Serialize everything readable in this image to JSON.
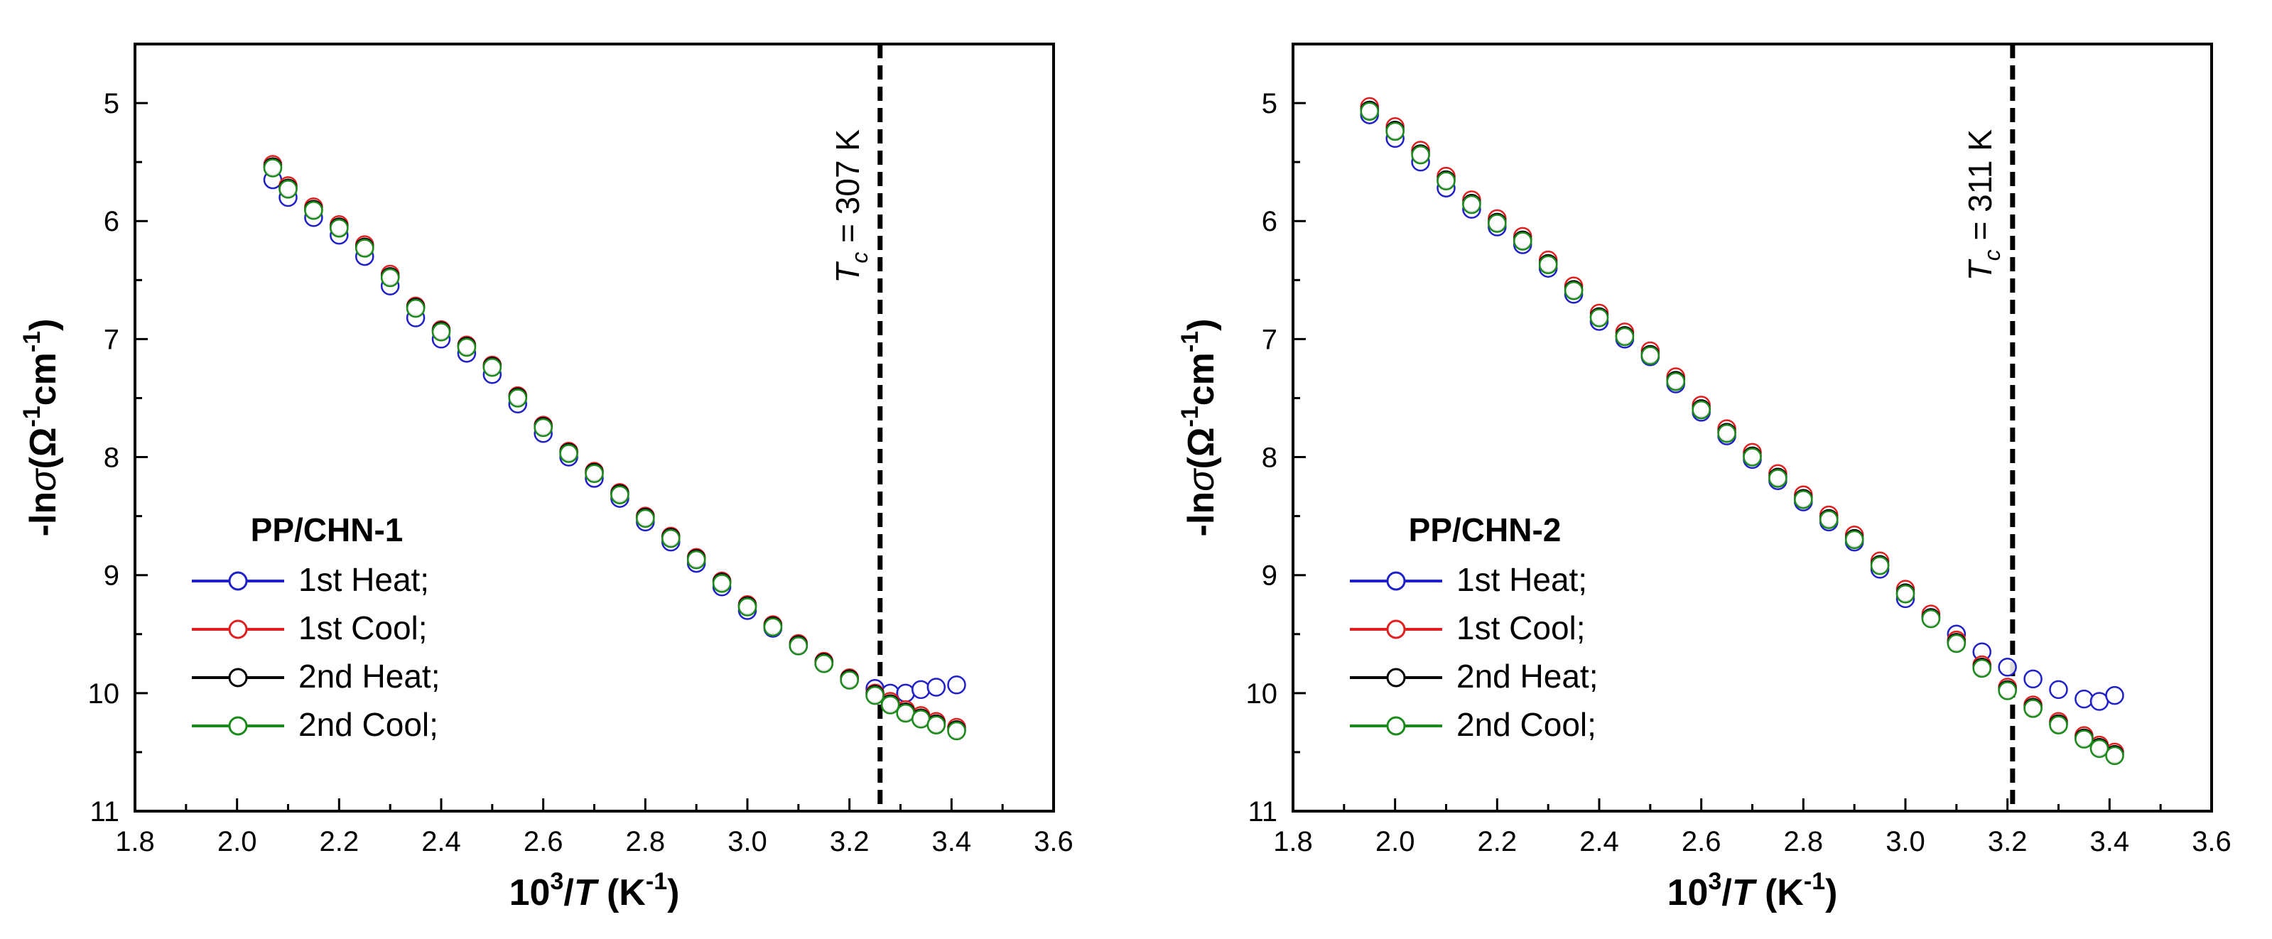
{
  "chart_data": [
    {
      "type": "scatter",
      "xlabel": "10³/T (K⁻¹)",
      "xlabel_parts": {
        "prefix": "10",
        "sup": "3",
        "slash": "/",
        "italic": "T",
        "unit_open": " (K",
        "unit_sup": "-1",
        "unit_close": ")"
      },
      "ylabel": "-lnσ(Ω⁻¹cm⁻¹)",
      "ylabel_parts": {
        "prefix": "-ln",
        "italic": "σ",
        "open": "(Ω",
        "sup1": "-1",
        "mid": "cm",
        "sup2": "-1",
        "close": ")"
      },
      "xlim": [
        1.8,
        3.6
      ],
      "ylim": [
        11,
        4.5
      ],
      "y_inverted": true,
      "x_ticks": [
        "1.8",
        "2.0",
        "2.2",
        "2.4",
        "2.6",
        "2.8",
        "3.0",
        "3.2",
        "3.4",
        "3.6"
      ],
      "y_ticks": [
        "5",
        "6",
        "7",
        "8",
        "9",
        "10",
        "11"
      ],
      "legend_title": "PP/CHN-1",
      "legend_position": "bottom-left",
      "vline": {
        "x": 3.26,
        "label_italic": "T",
        "label_sub": "c",
        "label_rest": " = 307 K"
      },
      "series": [
        {
          "name": "1st Heat;",
          "color": "#2020c8",
          "x": [
            2.07,
            2.1,
            2.15,
            2.2,
            2.25,
            2.3,
            2.35,
            2.4,
            2.45,
            2.5,
            2.55,
            2.6,
            2.65,
            2.7,
            2.75,
            2.8,
            2.85,
            2.9,
            2.95,
            3.0,
            3.05,
            3.1,
            3.15,
            3.2,
            3.25,
            3.28,
            3.31,
            3.34,
            3.37,
            3.41
          ],
          "y": [
            5.65,
            5.8,
            5.97,
            6.12,
            6.3,
            6.55,
            6.82,
            7.0,
            7.12,
            7.3,
            7.55,
            7.8,
            8.0,
            8.18,
            8.35,
            8.55,
            8.72,
            8.9,
            9.1,
            9.3,
            9.45,
            9.6,
            9.75,
            9.88,
            9.96,
            10.0,
            10.0,
            9.97,
            9.95,
            9.93
          ]
        },
        {
          "name": "1st Cool;",
          "color": "#e02020",
          "x": [
            2.07,
            2.1,
            2.15,
            2.2,
            2.25,
            2.3,
            2.35,
            2.4,
            2.45,
            2.5,
            2.55,
            2.6,
            2.65,
            2.7,
            2.75,
            2.8,
            2.85,
            2.9,
            2.95,
            3.0,
            3.05,
            3.1,
            3.15,
            3.2,
            3.25,
            3.28,
            3.31,
            3.34,
            3.37,
            3.41
          ],
          "y": [
            5.52,
            5.7,
            5.88,
            6.03,
            6.2,
            6.45,
            6.72,
            6.92,
            7.05,
            7.22,
            7.48,
            7.73,
            7.95,
            8.12,
            8.3,
            8.5,
            8.67,
            8.85,
            9.05,
            9.25,
            9.42,
            9.58,
            9.73,
            9.87,
            10.0,
            10.07,
            10.14,
            10.19,
            10.24,
            10.29
          ]
        },
        {
          "name": "2nd Heat;",
          "color": "#000000",
          "x": [
            2.07,
            2.1,
            2.15,
            2.2,
            2.25,
            2.3,
            2.35,
            2.4,
            2.45,
            2.5,
            2.55,
            2.6,
            2.65,
            2.7,
            2.75,
            2.8,
            2.85,
            2.9,
            2.95,
            3.0,
            3.05,
            3.1,
            3.15,
            3.2,
            3.25,
            3.28,
            3.31,
            3.34,
            3.37,
            3.41
          ],
          "y": [
            5.54,
            5.72,
            5.9,
            6.05,
            6.22,
            6.47,
            6.73,
            6.93,
            7.06,
            7.23,
            7.49,
            7.74,
            7.96,
            8.13,
            8.31,
            8.51,
            8.68,
            8.86,
            9.06,
            9.26,
            9.43,
            9.59,
            9.74,
            9.88,
            10.01,
            10.09,
            10.16,
            10.21,
            10.26,
            10.31
          ]
        },
        {
          "name": "2nd Cool;",
          "color": "#1a8a1a",
          "x": [
            2.07,
            2.1,
            2.15,
            2.2,
            2.25,
            2.3,
            2.35,
            2.4,
            2.45,
            2.5,
            2.55,
            2.6,
            2.65,
            2.7,
            2.75,
            2.8,
            2.85,
            2.9,
            2.95,
            3.0,
            3.05,
            3.1,
            3.15,
            3.2,
            3.25,
            3.28,
            3.31,
            3.34,
            3.37,
            3.41
          ],
          "y": [
            5.55,
            5.73,
            5.91,
            6.06,
            6.23,
            6.48,
            6.74,
            6.94,
            7.07,
            7.24,
            7.5,
            7.75,
            7.97,
            8.14,
            8.32,
            8.52,
            8.69,
            8.87,
            9.07,
            9.27,
            9.44,
            9.6,
            9.75,
            9.89,
            10.02,
            10.1,
            10.17,
            10.22,
            10.27,
            10.32
          ]
        }
      ]
    },
    {
      "type": "scatter",
      "xlabel": "10³/T (K⁻¹)",
      "xlabel_parts": {
        "prefix": "10",
        "sup": "3",
        "slash": "/",
        "italic": "T",
        "unit_open": " (K",
        "unit_sup": "-1",
        "unit_close": ")"
      },
      "ylabel": "-lnσ(Ω⁻¹cm⁻¹)",
      "ylabel_parts": {
        "prefix": "-ln",
        "italic": "σ",
        "open": "(Ω",
        "sup1": "-1",
        "mid": "cm",
        "sup2": "-1",
        "close": ")"
      },
      "xlim": [
        1.8,
        3.6
      ],
      "ylim": [
        11,
        4.5
      ],
      "y_inverted": true,
      "x_ticks": [
        "1.8",
        "2.0",
        "2.2",
        "2.4",
        "2.6",
        "2.8",
        "3.0",
        "3.2",
        "3.4",
        "3.6"
      ],
      "y_ticks": [
        "5",
        "6",
        "7",
        "8",
        "9",
        "10",
        "11"
      ],
      "legend_title": "PP/CHN-2",
      "legend_position": "bottom-left",
      "vline": {
        "x": 3.21,
        "label_italic": "T",
        "label_sub": "c",
        "label_rest": " = 311 K"
      },
      "series": [
        {
          "name": "1st Heat;",
          "color": "#2020c8",
          "x": [
            1.95,
            2.0,
            2.05,
            2.1,
            2.15,
            2.2,
            2.25,
            2.3,
            2.35,
            2.4,
            2.45,
            2.5,
            2.55,
            2.6,
            2.65,
            2.7,
            2.75,
            2.8,
            2.85,
            2.9,
            2.95,
            3.0,
            3.05,
            3.1,
            3.15,
            3.2,
            3.25,
            3.3,
            3.35,
            3.38,
            3.41
          ],
          "y": [
            5.1,
            5.3,
            5.5,
            5.72,
            5.9,
            6.05,
            6.2,
            6.4,
            6.62,
            6.85,
            7.0,
            7.15,
            7.38,
            7.62,
            7.82,
            8.02,
            8.2,
            8.38,
            8.55,
            8.72,
            8.95,
            9.2,
            9.35,
            9.5,
            9.65,
            9.78,
            9.88,
            9.97,
            10.05,
            10.07,
            10.02
          ]
        },
        {
          "name": "1st Cool;",
          "color": "#e02020",
          "x": [
            1.95,
            2.0,
            2.05,
            2.1,
            2.15,
            2.2,
            2.25,
            2.3,
            2.35,
            2.4,
            2.45,
            2.5,
            2.55,
            2.6,
            2.65,
            2.7,
            2.75,
            2.8,
            2.85,
            2.9,
            2.95,
            3.0,
            3.05,
            3.1,
            3.15,
            3.2,
            3.25,
            3.3,
            3.35,
            3.38,
            3.41
          ],
          "y": [
            5.03,
            5.2,
            5.4,
            5.62,
            5.82,
            5.98,
            6.13,
            6.33,
            6.55,
            6.78,
            6.94,
            7.1,
            7.32,
            7.56,
            7.76,
            7.96,
            8.14,
            8.32,
            8.49,
            8.66,
            8.88,
            9.12,
            9.33,
            9.55,
            9.76,
            9.95,
            10.1,
            10.24,
            10.36,
            10.44,
            10.5
          ]
        },
        {
          "name": "2nd Heat;",
          "color": "#000000",
          "x": [
            1.95,
            2.0,
            2.05,
            2.1,
            2.15,
            2.2,
            2.25,
            2.3,
            2.35,
            2.4,
            2.45,
            2.5,
            2.55,
            2.6,
            2.65,
            2.7,
            2.75,
            2.8,
            2.85,
            2.9,
            2.95,
            3.0,
            3.05,
            3.1,
            3.15,
            3.2,
            3.25,
            3.3,
            3.35,
            3.38,
            3.41
          ],
          "y": [
            5.06,
            5.23,
            5.43,
            5.65,
            5.85,
            6.01,
            6.16,
            6.36,
            6.58,
            6.81,
            6.97,
            7.13,
            7.35,
            7.59,
            7.79,
            7.99,
            8.17,
            8.35,
            8.52,
            8.69,
            8.91,
            9.15,
            9.36,
            9.57,
            9.78,
            9.97,
            10.12,
            10.26,
            10.38,
            10.46,
            10.52
          ]
        },
        {
          "name": "2nd Cool;",
          "color": "#1a8a1a",
          "x": [
            1.95,
            2.0,
            2.05,
            2.1,
            2.15,
            2.2,
            2.25,
            2.3,
            2.35,
            2.4,
            2.45,
            2.5,
            2.55,
            2.6,
            2.65,
            2.7,
            2.75,
            2.8,
            2.85,
            2.9,
            2.95,
            3.0,
            3.05,
            3.1,
            3.15,
            3.2,
            3.25,
            3.3,
            3.35,
            3.38,
            3.41
          ],
          "y": [
            5.07,
            5.24,
            5.44,
            5.66,
            5.86,
            6.02,
            6.17,
            6.37,
            6.59,
            6.82,
            6.98,
            7.14,
            7.36,
            7.6,
            7.8,
            8.0,
            8.18,
            8.36,
            8.53,
            8.7,
            8.92,
            9.16,
            9.37,
            9.58,
            9.79,
            9.98,
            10.13,
            10.27,
            10.39,
            10.47,
            10.53
          ]
        }
      ]
    }
  ]
}
